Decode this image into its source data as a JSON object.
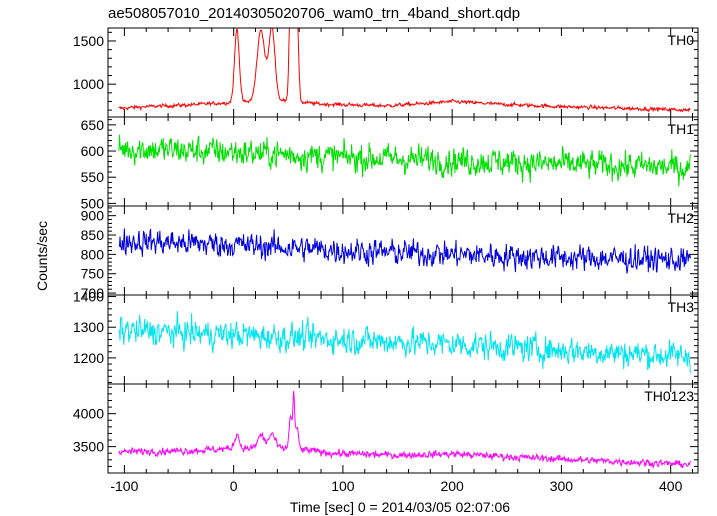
{
  "title": "ae508057010_20140305020706_wam0_trn_4band_short.qdp",
  "ylabel": "Counts/sec",
  "xlabel": "Time [sec] 0 = 2014/03/05 02:07:06",
  "chart_data": {
    "type": "line",
    "title": "ae508057010_20140305020706_wam0_trn_4band_short.qdp",
    "xlabel": "Time [sec] 0 = 2014/03/05 02:07:06",
    "ylabel": "Counts/sec",
    "xlim": [
      -115,
      425
    ],
    "x_ticks": [
      -100,
      0,
      100,
      200,
      300,
      400
    ],
    "x_range": [
      -105,
      418
    ],
    "x_step": 0.5,
    "grid": false,
    "panels": [
      {
        "name": "TH0",
        "color": "#ff0000",
        "ylim": [
          620,
          1650
        ],
        "yticks": [
          1000,
          1500
        ],
        "baseline": [
          [
            -105,
            720
          ],
          [
            -80,
            740
          ],
          [
            -40,
            760
          ],
          [
            0,
            790
          ],
          [
            30,
            800
          ],
          [
            45,
            810
          ],
          [
            60,
            790
          ],
          [
            80,
            770
          ],
          [
            110,
            760
          ],
          [
            140,
            750
          ],
          [
            180,
            780
          ],
          [
            200,
            800
          ],
          [
            240,
            770
          ],
          [
            300,
            740
          ],
          [
            360,
            720
          ],
          [
            418,
            700
          ]
        ],
        "noise": 14,
        "features": [
          [
            3,
            850,
            3
          ],
          [
            25,
            830,
            5
          ],
          [
            35,
            850,
            4
          ],
          [
            52,
            1200,
            1.8
          ],
          [
            55,
            1500,
            1.2
          ],
          [
            58,
            1000,
            2
          ]
        ]
      },
      {
        "name": "TH1",
        "color": "#00e000",
        "ylim": [
          495,
          665
        ],
        "yticks": [
          500,
          550,
          600,
          650
        ],
        "baseline": [
          [
            -105,
            605
          ],
          [
            0,
            598
          ],
          [
            100,
            588
          ],
          [
            200,
            582
          ],
          [
            300,
            575
          ],
          [
            418,
            568
          ]
        ],
        "noise": 18,
        "features": []
      },
      {
        "name": "TH2",
        "color": "#0000e0",
        "ylim": [
          695,
          925
        ],
        "yticks": [
          700,
          750,
          800,
          850,
          900
        ],
        "baseline": [
          [
            -105,
            835
          ],
          [
            0,
            825
          ],
          [
            100,
            810
          ],
          [
            200,
            800
          ],
          [
            300,
            792
          ],
          [
            418,
            785
          ]
        ],
        "noise": 22,
        "features": []
      },
      {
        "name": "TH3",
        "color": "#00e5ee",
        "ylim": [
          1115,
          1405
        ],
        "yticks": [
          1200,
          1300,
          1400
        ],
        "baseline": [
          [
            -105,
            1290
          ],
          [
            0,
            1275
          ],
          [
            100,
            1260
          ],
          [
            200,
            1245
          ],
          [
            300,
            1225
          ],
          [
            418,
            1205
          ]
        ],
        "noise": 30,
        "features": []
      },
      {
        "name": "TH0123",
        "color": "#ff00ff",
        "ylim": [
          3100,
          4450
        ],
        "yticks": [
          3500,
          4000
        ],
        "baseline": [
          [
            -105,
            3420
          ],
          [
            -40,
            3440
          ],
          [
            0,
            3470
          ],
          [
            30,
            3480
          ],
          [
            60,
            3460
          ],
          [
            90,
            3400
          ],
          [
            150,
            3370
          ],
          [
            200,
            3390
          ],
          [
            260,
            3340
          ],
          [
            330,
            3290
          ],
          [
            418,
            3230
          ]
        ],
        "noise": 35,
        "features": [
          [
            3,
            220,
            3
          ],
          [
            25,
            200,
            4
          ],
          [
            35,
            220,
            4
          ],
          [
            52,
            500,
            1.8
          ],
          [
            55,
            800,
            1.2
          ],
          [
            58,
            300,
            2
          ]
        ]
      }
    ]
  }
}
